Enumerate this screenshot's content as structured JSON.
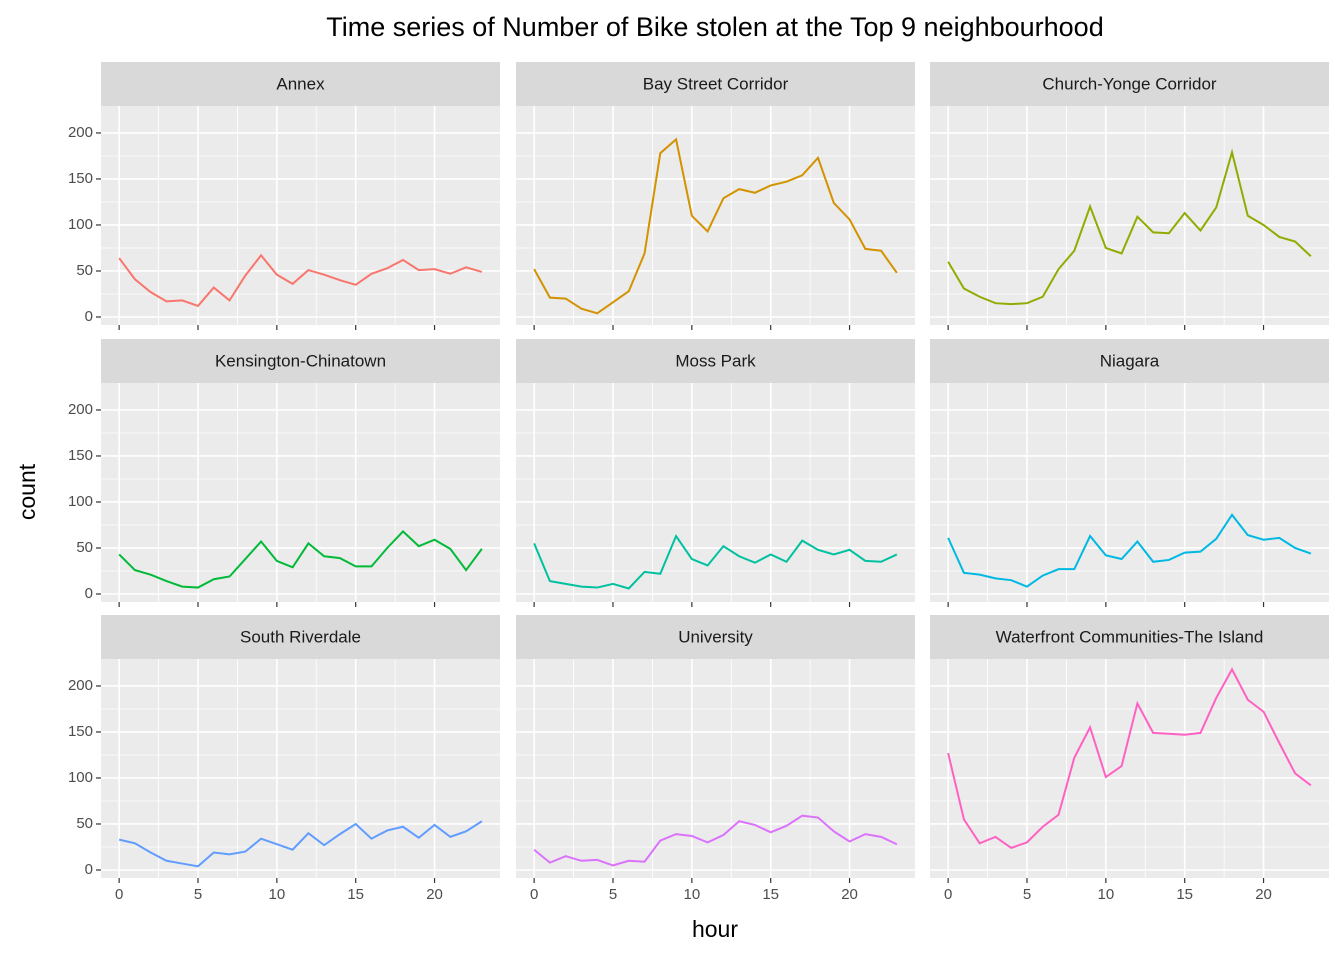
{
  "chart_data": {
    "type": "line",
    "facet": true,
    "title": "Time series of Number of Bike stolen at the Top 9 neighbourhood",
    "x_label": "hour",
    "y_label": "count",
    "x": [
      0,
      1,
      2,
      3,
      4,
      5,
      6,
      7,
      8,
      9,
      10,
      11,
      12,
      13,
      14,
      15,
      16,
      17,
      18,
      19,
      20,
      21,
      22,
      23
    ],
    "xlim": [
      -1.15,
      24.15
    ],
    "xticks": [
      0,
      5,
      10,
      15,
      20
    ],
    "ylim": [
      -8.7,
      229.3
    ],
    "yticks": [
      0,
      50,
      100,
      150,
      200
    ],
    "grid": true,
    "minor_grid": true,
    "series": [
      {
        "name": "Annex",
        "color": "#F8766D",
        "values": [
          64,
          41,
          27,
          17,
          18,
          12,
          32,
          18,
          45,
          67,
          46,
          36,
          51,
          46,
          40,
          35,
          47,
          53,
          62,
          51,
          52,
          47,
          54,
          49
        ]
      },
      {
        "name": "Bay Street Corridor",
        "color": "#D39200",
        "values": [
          52,
          21,
          20,
          9,
          4,
          16,
          28,
          69,
          178,
          193,
          110,
          93,
          129,
          139,
          135,
          143,
          147,
          154,
          173,
          124,
          106,
          74,
          72,
          48
        ]
      },
      {
        "name": "Church-Yonge Corridor",
        "color": "#93AA00",
        "values": [
          60,
          31,
          22,
          15,
          14,
          15,
          22,
          52,
          72,
          120,
          75,
          69,
          109,
          92,
          91,
          113,
          94,
          119,
          179,
          110,
          100,
          87,
          82,
          66
        ]
      },
      {
        "name": "Kensington-Chinatown",
        "color": "#00BA38",
        "values": [
          43,
          26,
          21,
          14,
          8,
          7,
          16,
          19,
          38,
          57,
          36,
          29,
          55,
          41,
          39,
          30,
          30,
          50,
          68,
          52,
          59,
          49,
          26,
          49
        ]
      },
      {
        "name": "Moss Park",
        "color": "#00C19F",
        "values": [
          55,
          14,
          11,
          8,
          7,
          11,
          6,
          24,
          22,
          63,
          38,
          31,
          52,
          41,
          34,
          43,
          35,
          58,
          48,
          43,
          48,
          36,
          35,
          43
        ]
      },
      {
        "name": "Niagara",
        "color": "#00B9E3",
        "values": [
          61,
          23,
          21,
          17,
          15,
          8,
          20,
          27,
          27,
          63,
          42,
          38,
          57,
          35,
          37,
          45,
          46,
          60,
          86,
          64,
          59,
          61,
          50,
          44
        ]
      },
      {
        "name": "South Riverdale",
        "color": "#619CFF",
        "values": [
          33,
          29,
          19,
          10,
          7,
          4,
          19,
          17,
          20,
          34,
          28,
          22,
          40,
          27,
          39,
          50,
          34,
          43,
          47,
          35,
          49,
          36,
          42,
          53
        ]
      },
      {
        "name": "University",
        "color": "#DB72FB",
        "values": [
          22,
          8,
          15,
          10,
          11,
          5,
          10,
          9,
          32,
          39,
          37,
          30,
          38,
          53,
          49,
          41,
          48,
          59,
          57,
          42,
          31,
          39,
          36,
          28
        ]
      },
      {
        "name": "Waterfront Communities-The Island",
        "color": "#FF61C3",
        "values": [
          127,
          55,
          29,
          36,
          24,
          30,
          47,
          60,
          122,
          155,
          101,
          113,
          181,
          149,
          148,
          147,
          149,
          187,
          218,
          185,
          172,
          138,
          105,
          92
        ]
      }
    ]
  }
}
